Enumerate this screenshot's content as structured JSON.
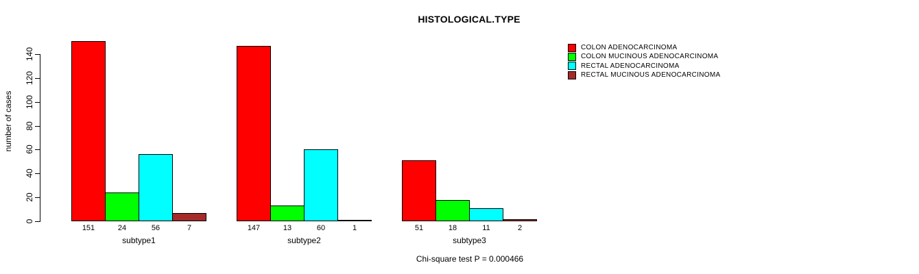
{
  "chart_data": {
    "type": "bar",
    "title": "HISTOLOGICAL.TYPE",
    "ylabel": "number of cases",
    "xlabel": "",
    "categories": [
      "subtype1",
      "subtype2",
      "subtype3"
    ],
    "series": [
      {
        "name": "COLON ADENOCARCINOMA",
        "color": "#FF0000",
        "values": [
          151,
          147,
          51
        ]
      },
      {
        "name": "COLON MUCINOUS ADENOCARCINOMA",
        "color": "#00FF00",
        "values": [
          24,
          13,
          18
        ]
      },
      {
        "name": "RECTAL ADENOCARCINOMA",
        "color": "#00FFFF",
        "values": [
          56,
          60,
          11
        ]
      },
      {
        "name": "RECTAL MUCINOUS ADENOCARCINOMA",
        "color": "#A52A2A",
        "values": [
          7,
          1,
          2
        ]
      }
    ],
    "y_ticks": [
      0,
      20,
      40,
      60,
      80,
      100,
      120,
      140
    ],
    "ylim": [
      0,
      155
    ],
    "grid": false,
    "bar_value_labels_shown": true,
    "legend_position": "right",
    "annotation": "Chi-square test P = 0.000466"
  }
}
